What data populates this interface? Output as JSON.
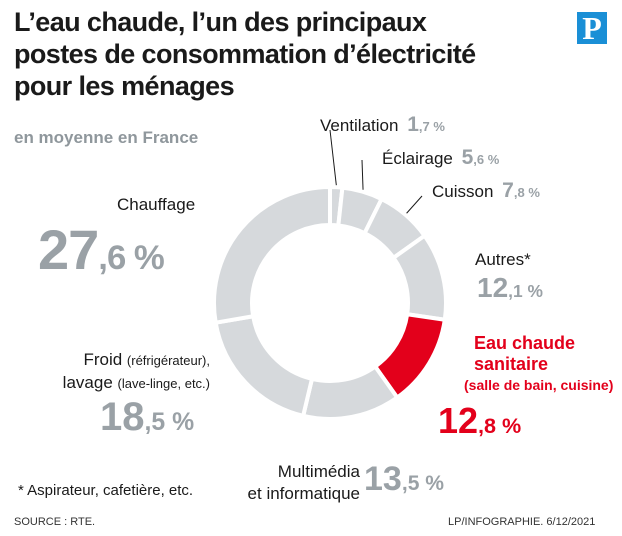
{
  "title_lines": [
    "L’eau chaude, l’un des principaux",
    "postes de consommation d’électricité",
    "pour les ménages"
  ],
  "subtitle": "en moyenne en France",
  "logo_letter": "P",
  "colors": {
    "slice": "#d6d9dc",
    "highlight": "#e3001b",
    "percent": "#9aa1a6",
    "logo": "#1a8fd6"
  },
  "chart_data": {
    "type": "pie",
    "donut": true,
    "title": "L’eau chaude, l’un des principaux postes de consommation d’électricité pour les ménages",
    "subtitle": "en moyenne en France",
    "unit": "%",
    "highlighted": "Eau chaude sanitaire",
    "slices": [
      {
        "label": "Ventilation",
        "value": 1.7,
        "int": "1",
        "dec": "7"
      },
      {
        "label": "Éclairage",
        "value": 5.6,
        "int": "5",
        "dec": "6"
      },
      {
        "label": "Cuisson",
        "value": 7.8,
        "int": "7",
        "dec": "8"
      },
      {
        "label": "Autres*",
        "value": 12.1,
        "int": "12",
        "dec": "1"
      },
      {
        "label": "Eau chaude sanitaire",
        "value": 12.8,
        "int": "12",
        "dec": "8"
      },
      {
        "label": "Multimédia et informatique",
        "value": 13.5,
        "int": "13",
        "dec": "5"
      },
      {
        "label": "Froid (réfrigérateur), lavage (lave-linge, etc.)",
        "value": 18.5,
        "int": "18",
        "dec": "5"
      },
      {
        "label": "Chauffage",
        "value": 27.6,
        "int": "27",
        "dec": "6"
      }
    ]
  },
  "labels": {
    "ventilation": "Ventilation",
    "eclairage": "Éclairage",
    "cuisson": "Cuisson",
    "autres": "Autres*",
    "eau_line1": "Eau chaude",
    "eau_line2": "sanitaire",
    "eau_line3": "(salle de bain, cuisine)",
    "multimedia_line1": "Multimédia",
    "multimedia_line2": "et informatique",
    "froid_line1": "Froid",
    "froid_line1_detail": "(réfrigérateur),",
    "froid_line2": "lavage",
    "froid_line2_detail": "(lave-linge, etc.)",
    "chauffage": "Chauffage"
  },
  "comma": ",",
  "percent_sign": " %",
  "footnote": "* Aspirateur, cafetière, etc.",
  "source": "SOURCE : RTE.",
  "credit": "LP/INFOGRAPHIE.  6/12/2021"
}
